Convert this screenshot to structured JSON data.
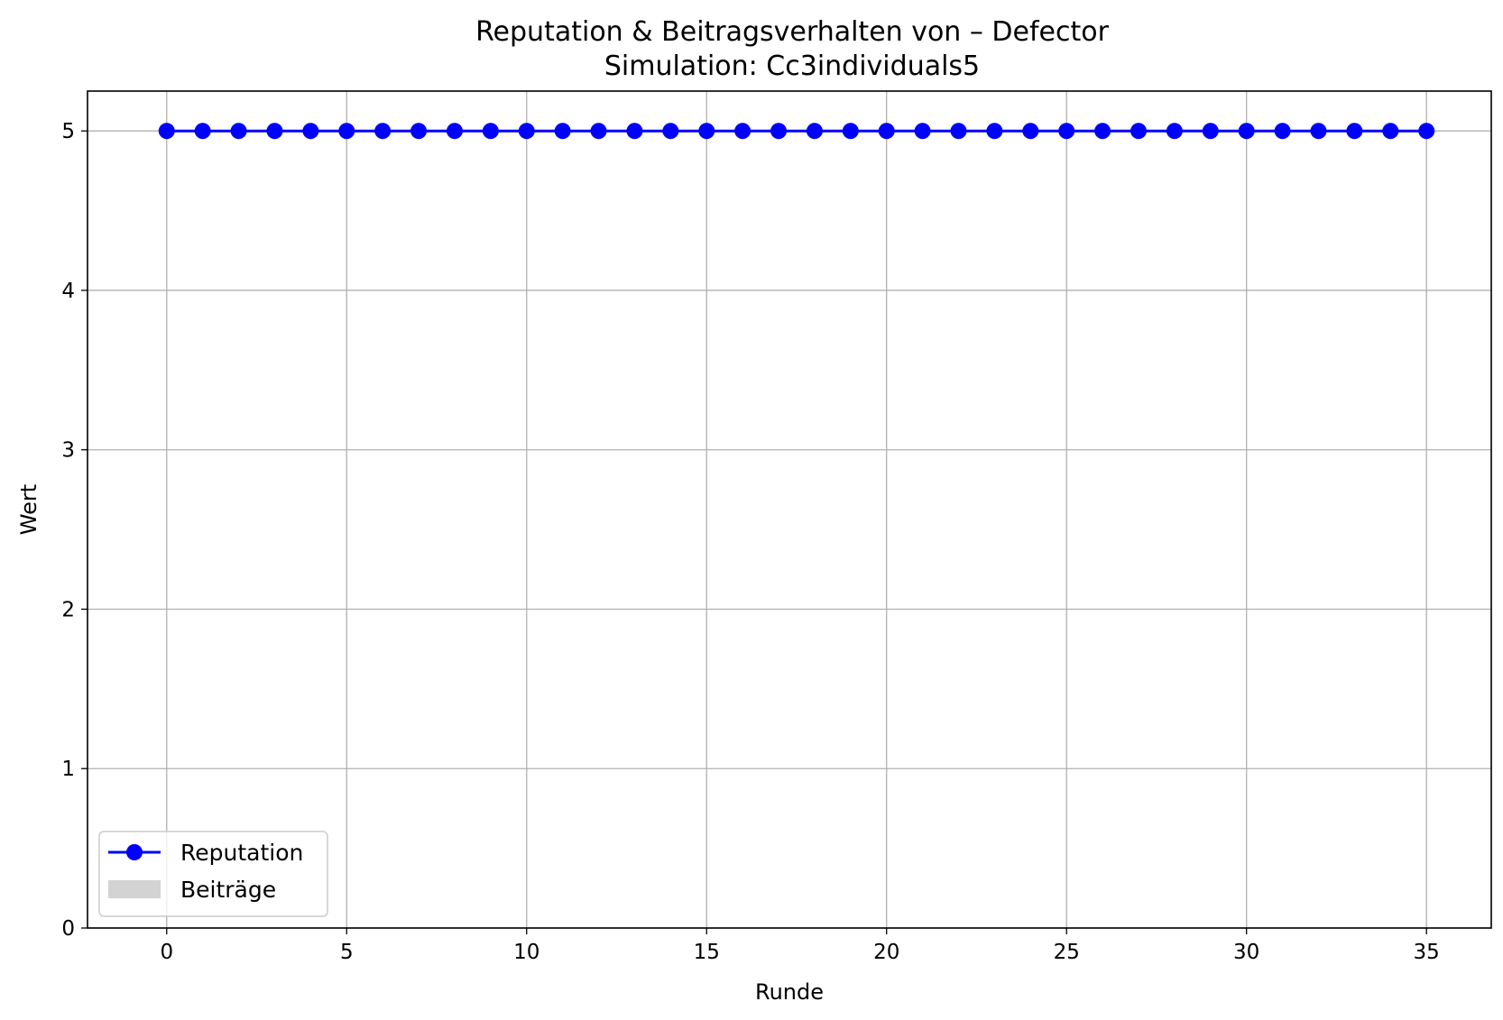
{
  "chart_data": {
    "type": "line",
    "title": "Reputation & Beitragsverhalten von – Defector",
    "subtitle": "Simulation: Cc3individuals5",
    "xlabel": "Runde",
    "ylabel": "Wert",
    "xlim": [
      -2.2,
      36.8
    ],
    "ylim": [
      0,
      5.25
    ],
    "xticks": [
      0,
      5,
      10,
      15,
      20,
      25,
      30,
      35
    ],
    "yticks": [
      0,
      1,
      2,
      3,
      4,
      5
    ],
    "grid": true,
    "legend_position": "lower-left",
    "series": [
      {
        "name": "Reputation",
        "kind": "line-marker",
        "color": "#0000ff",
        "x": [
          0,
          1,
          2,
          3,
          4,
          5,
          6,
          7,
          8,
          9,
          10,
          11,
          12,
          13,
          14,
          15,
          16,
          17,
          18,
          19,
          20,
          21,
          22,
          23,
          24,
          25,
          26,
          27,
          28,
          29,
          30,
          31,
          32,
          33,
          34,
          35
        ],
        "y": [
          5,
          5,
          5,
          5,
          5,
          5,
          5,
          5,
          5,
          5,
          5,
          5,
          5,
          5,
          5,
          5,
          5,
          5,
          5,
          5,
          5,
          5,
          5,
          5,
          5,
          5,
          5,
          5,
          5,
          5,
          5,
          5,
          5,
          5,
          5,
          5
        ]
      },
      {
        "name": "Beiträge",
        "kind": "bar",
        "color": "#d3d3d3",
        "x": [
          0,
          1,
          2,
          3,
          4,
          5,
          6,
          7,
          8,
          9,
          10,
          11,
          12,
          13,
          14,
          15,
          16,
          17,
          18,
          19,
          20,
          21,
          22,
          23,
          24,
          25,
          26,
          27,
          28,
          29,
          30,
          31,
          32,
          33,
          34,
          35
        ],
        "y": [
          0,
          0,
          0,
          0,
          0,
          0,
          0,
          0,
          0,
          0,
          0,
          0,
          0,
          0,
          0,
          0,
          0,
          0,
          0,
          0,
          0,
          0,
          0,
          0,
          0,
          0,
          0,
          0,
          0,
          0,
          0,
          0,
          0,
          0,
          0,
          0
        ]
      }
    ]
  }
}
